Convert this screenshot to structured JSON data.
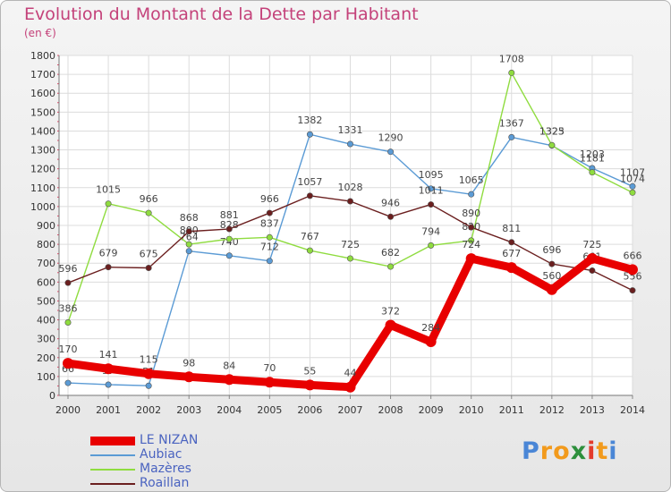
{
  "title": "Evolution du Montant de la Dette par Habitant",
  "unit": "(en €)",
  "brand": {
    "text": "Proxiti",
    "letters": [
      "P",
      "r",
      "o",
      "x",
      "i",
      "t",
      "i"
    ],
    "colors": [
      "#4a86d6",
      "#f29a1c",
      "#f29a1c",
      "#2d8f3c",
      "#e33b2c",
      "#f29a1c",
      "#4a86d6"
    ]
  },
  "chart_data": {
    "type": "line",
    "x": [
      2000,
      2001,
      2002,
      2003,
      2004,
      2005,
      2006,
      2007,
      2008,
      2009,
      2010,
      2011,
      2012,
      2013,
      2014
    ],
    "ylim": [
      0,
      1800
    ],
    "y_ticks": [
      0,
      100,
      200,
      300,
      400,
      500,
      600,
      700,
      800,
      900,
      1000,
      1100,
      1200,
      1300,
      1400,
      1500,
      1600,
      1700,
      1800
    ],
    "grid": true,
    "legend_position": "bottom-left",
    "series": [
      {
        "name": "LE NIZAN",
        "color": "#e80000",
        "values": [
          170,
          141,
          115,
          98,
          84,
          70,
          55,
          44,
          372,
          284,
          724,
          677,
          560,
          725,
          666
        ]
      },
      {
        "name": "Aubiac",
        "color": "#5b9bd5",
        "values": [
          66,
          57,
          51,
          764,
          740,
          712,
          1382,
          1331,
          1290,
          1095,
          1065,
          1367,
          1323,
          1203,
          1107
        ]
      },
      {
        "name": "Mazères",
        "color": "#8fdc3f",
        "values": [
          386,
          1015,
          966,
          800,
          828,
          837,
          767,
          725,
          682,
          794,
          820,
          1708,
          1325,
          1181,
          1074
        ]
      },
      {
        "name": "Roaillan",
        "color": "#6b1f1f",
        "values": [
          596,
          679,
          675,
          868,
          881,
          966,
          1057,
          1028,
          946,
          1011,
          890,
          811,
          696,
          661,
          556
        ]
      }
    ]
  }
}
